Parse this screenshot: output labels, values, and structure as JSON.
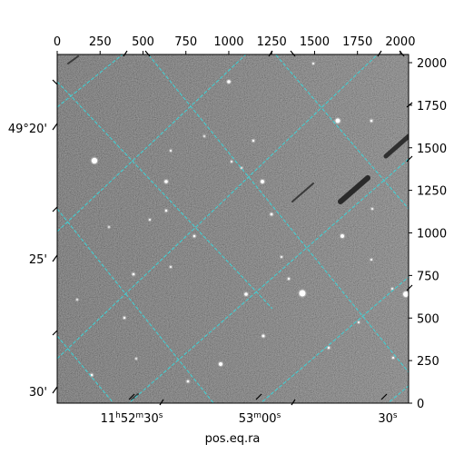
{
  "figure": {
    "xlabel": "pos.eq.ra"
  },
  "pixel_axes": {
    "top_ticks": [
      "0",
      "250",
      "500",
      "750",
      "1000",
      "1250",
      "1500",
      "1750",
      "2000"
    ],
    "right_ticks": [
      "0",
      "250",
      "500",
      "750",
      "1000",
      "1250",
      "1500",
      "1750",
      "2000"
    ],
    "range": [
      0,
      2048
    ]
  },
  "world_axes": {
    "ra_ticks": [
      {
        "h": "11",
        "m": "52",
        "s": "30"
      },
      {
        "h": "",
        "m": "53",
        "s": "00"
      },
      {
        "h": "",
        "m": "",
        "s": "30"
      }
    ],
    "dec_ticks": [
      "49°20'",
      "25'",
      "30'"
    ]
  },
  "colors": {
    "grid": "#3fd2d6",
    "frame": "#000000",
    "background_sky": "#6a6a6a"
  },
  "icons": {
    "stars": "star-icon",
    "trails": "satellite-trail-icon"
  }
}
